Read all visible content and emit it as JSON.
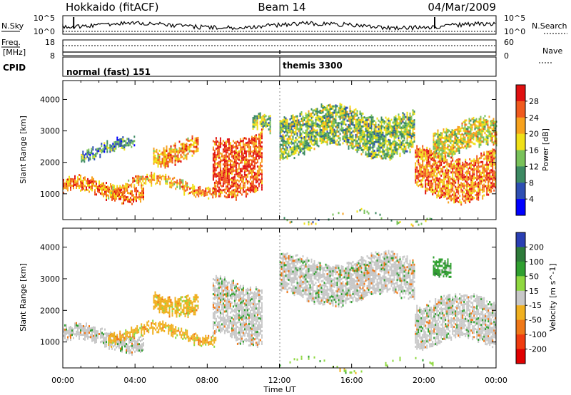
{
  "header": {
    "radar": "Hokkaido (fitACF)",
    "beam": "Beam 14",
    "date": "04/Mar/2009"
  },
  "noise_panel": {
    "left_label": "N.Sky",
    "right_label": "N.Search",
    "left_ticks": [
      "10^5",
      "10^0"
    ],
    "right_ticks": [
      "10^5",
      "10^0"
    ]
  },
  "freq_panel": {
    "left_label_1": "Freq.",
    "left_label_2": "[MHz]",
    "right_label": "Nave",
    "left_ticks": [
      "18",
      "8"
    ],
    "right_ticks": [
      "60",
      "0"
    ]
  },
  "cpid_panel": {
    "label": "CPID",
    "segments": [
      {
        "start_hour": 0,
        "end_hour": 12,
        "label": "normal (fast) 151"
      },
      {
        "start_hour": 12,
        "end_hour": 24,
        "label": "themis 3300"
      }
    ]
  },
  "chart_data": [
    {
      "type": "heatmap",
      "name": "Power",
      "xlabel": "",
      "ylabel": "Slant Range [km]",
      "xlim": [
        0,
        24
      ],
      "ylim": [
        180,
        4600
      ],
      "yticks": [
        1000,
        2000,
        3000,
        4000
      ],
      "colorbar": {
        "label": "Power [dB]",
        "ticks": [
          "4",
          "8",
          "12",
          "16",
          "20",
          "24",
          "28"
        ],
        "colors": [
          "#0000ff",
          "#2e4fb3",
          "#3d8a63",
          "#79c25a",
          "#f0e018",
          "#f7a21e",
          "#f05a1e",
          "#e01010"
        ],
        "min": 0,
        "max": 32
      },
      "echo_bands": [
        {
          "start_hour": 0.0,
          "end_hour": 4.5,
          "lower_km": 850,
          "upper_km": 1450,
          "power_db": 24
        },
        {
          "start_hour": 2.5,
          "end_hour": 8.5,
          "lower_km": 1050,
          "upper_km": 1500,
          "power_db": 22
        },
        {
          "start_hour": 1.0,
          "end_hour": 4.0,
          "lower_km": 2200,
          "upper_km": 2650,
          "power_db": 10
        },
        {
          "start_hour": 5.0,
          "end_hour": 7.5,
          "lower_km": 2000,
          "upper_km": 2700,
          "power_db": 22
        },
        {
          "start_hour": 8.3,
          "end_hour": 11.0,
          "lower_km": 1050,
          "upper_km": 3000,
          "power_db": 26
        },
        {
          "start_hour": 10.5,
          "end_hour": 11.5,
          "lower_km": 2800,
          "upper_km": 3400,
          "power_db": 14
        },
        {
          "start_hour": 12.0,
          "end_hour": 19.5,
          "lower_km": 2300,
          "upper_km": 3700,
          "power_db": 14
        },
        {
          "start_hour": 19.5,
          "end_hour": 24.0,
          "lower_km": 900,
          "upper_km": 2400,
          "power_db": 24
        },
        {
          "start_hour": 20.5,
          "end_hour": 24.0,
          "lower_km": 2300,
          "upper_km": 3300,
          "power_db": 18
        },
        {
          "start_hour": 12.0,
          "end_hour": 20.5,
          "lower_km": 200,
          "upper_km": 350,
          "power_db": 14
        }
      ]
    },
    {
      "type": "heatmap",
      "name": "Velocity",
      "xlabel": "Time UT",
      "ylabel": "Slant Range [km]",
      "xlim": [
        0,
        24
      ],
      "ylim": [
        180,
        4600
      ],
      "xticks": [
        "00:00",
        "04:00",
        "08:00",
        "12:00",
        "16:00",
        "20:00",
        "00:00"
      ],
      "yticks": [
        1000,
        2000,
        3000,
        4000
      ],
      "colorbar": {
        "label": "Velocity [m s^-1]",
        "ticks": [
          "200",
          "100",
          "50",
          "15",
          "-15",
          "-50",
          "-100",
          "-200"
        ],
        "colors": [
          "#2a3fb3",
          "#2e7b3a",
          "#30a030",
          "#8fd840",
          "#c8c8c8",
          "#f0b020",
          "#f07818",
          "#f03c10",
          "#e00000"
        ],
        "min": -250,
        "max": 250
      },
      "echo_bands": [
        {
          "start_hour": 0.0,
          "end_hour": 4.5,
          "lower_km": 850,
          "upper_km": 1450,
          "velocity": 0
        },
        {
          "start_hour": 2.5,
          "end_hour": 8.5,
          "lower_km": 1050,
          "upper_km": 1500,
          "velocity": -20
        },
        {
          "start_hour": 5.0,
          "end_hour": 7.5,
          "lower_km": 2000,
          "upper_km": 2700,
          "velocity": -30
        },
        {
          "start_hour": 8.3,
          "end_hour": 11.0,
          "lower_km": 1050,
          "upper_km": 3000,
          "velocity": 0
        },
        {
          "start_hour": 12.0,
          "end_hour": 19.5,
          "lower_km": 2300,
          "upper_km": 3700,
          "velocity": 0
        },
        {
          "start_hour": 19.5,
          "end_hour": 24.0,
          "lower_km": 900,
          "upper_km": 2400,
          "velocity": 0
        },
        {
          "start_hour": 20.5,
          "end_hour": 21.5,
          "lower_km": 2800,
          "upper_km": 3500,
          "velocity": 60
        },
        {
          "start_hour": 12.0,
          "end_hour": 20.5,
          "lower_km": 200,
          "upper_km": 350,
          "velocity": 40
        }
      ]
    }
  ]
}
